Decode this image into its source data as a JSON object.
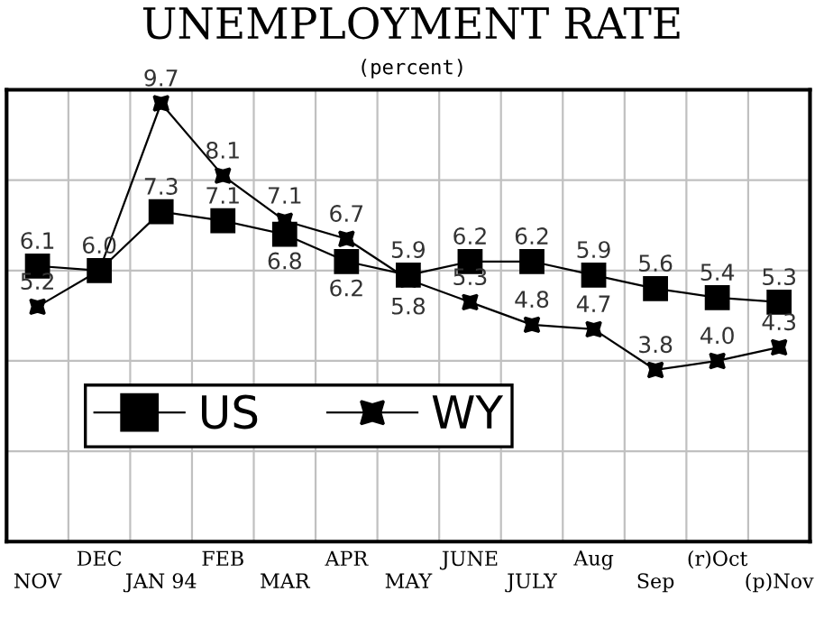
{
  "chart_data": {
    "type": "line",
    "title": "UNEMPLOYMENT RATE",
    "subtitle": "(percent)",
    "categories": [
      "NOV",
      "DEC",
      "JAN 94",
      "FEB",
      "MAR",
      "APR",
      "MAY",
      "JUNE",
      "JULY",
      "Aug",
      "Sep",
      "(r)Oct",
      "(p)Nov"
    ],
    "series": [
      {
        "name": "US",
        "color": "#000000",
        "marker": "square",
        "values": [
          6.1,
          6.0,
          7.3,
          7.1,
          6.8,
          6.2,
          5.9,
          6.2,
          6.2,
          5.9,
          5.6,
          5.4,
          5.3
        ],
        "value_labels": [
          "6.1",
          null,
          "7.3",
          "7.1",
          "6.8",
          "6.2",
          "5.9",
          "6.2",
          "6.2",
          "5.9",
          "5.6",
          "5.4",
          "5.3"
        ]
      },
      {
        "name": "WY",
        "color": "#000000",
        "marker": "star",
        "values": [
          5.2,
          6.0,
          9.7,
          8.1,
          7.1,
          6.7,
          5.8,
          5.3,
          4.8,
          4.7,
          3.8,
          4.0,
          4.3
        ],
        "value_labels": [
          "5.2",
          "6.0",
          "9.7",
          "8.1",
          "7.1",
          "6.7",
          "5.8",
          "5.3",
          "4.8",
          "4.7",
          "3.8",
          "4.0",
          "4.3"
        ]
      }
    ],
    "ylim": [
      0,
      10
    ],
    "yticks": [
      {
        "value": 0,
        "label": null
      },
      {
        "value": 2,
        "label": null
      },
      {
        "value": 4,
        "label": null
      },
      {
        "value": 6,
        "label": null
      },
      {
        "value": 8,
        "label": null
      },
      {
        "value": 10,
        "label": null
      }
    ],
    "tick_labels": "x",
    "grid": true,
    "legend": "bottom left",
    "line_style": "solid"
  }
}
